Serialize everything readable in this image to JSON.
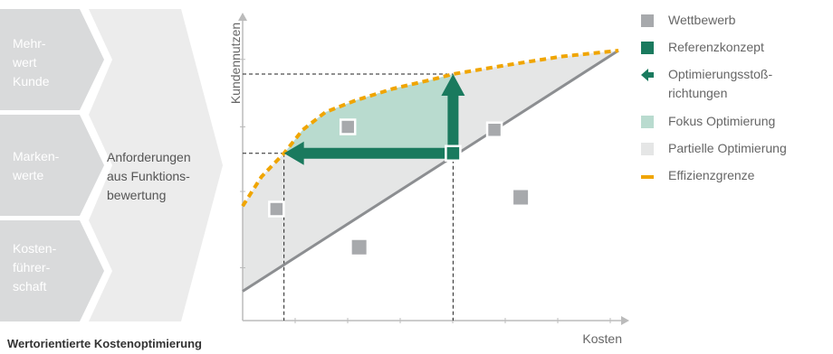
{
  "left_panel": {
    "chevrons": [
      {
        "label": "Mehr-\nwert\nKunde"
      },
      {
        "label": "Marken-\nwerte"
      },
      {
        "label": "Kosten-\nführer-\nschaft"
      }
    ],
    "requirements_text": "Anforderungen\naus Funktions-\nbewertung"
  },
  "chart_data": {
    "type": "scatter",
    "xlabel": "Kosten",
    "ylabel": "Kundennutzen",
    "xlim": [
      0,
      100
    ],
    "ylim": [
      0,
      100
    ],
    "wettbewerb_points": [
      {
        "x": 9,
        "y": 38
      },
      {
        "x": 28,
        "y": 66
      },
      {
        "x": 31,
        "y": 25
      },
      {
        "x": 67,
        "y": 65
      },
      {
        "x": 74,
        "y": 42
      }
    ],
    "referenzkonzept": {
      "x": 56,
      "y": 57
    },
    "optimized_cost_point": {
      "x": 11,
      "y": 57
    },
    "optimized_benefit_point": {
      "x": 56,
      "y": 84
    },
    "efficiency_frontier": [
      {
        "x": 0,
        "y": 39
      },
      {
        "x": 5,
        "y": 49
      },
      {
        "x": 11,
        "y": 57
      },
      {
        "x": 16,
        "y": 65
      },
      {
        "x": 22,
        "y": 71
      },
      {
        "x": 30,
        "y": 75
      },
      {
        "x": 40,
        "y": 79
      },
      {
        "x": 50,
        "y": 82
      },
      {
        "x": 56,
        "y": 84
      },
      {
        "x": 70,
        "y": 87
      },
      {
        "x": 85,
        "y": 90
      },
      {
        "x": 100,
        "y": 92
      }
    ],
    "baseline": [
      {
        "x": 0,
        "y": 10
      },
      {
        "x": 100,
        "y": 92
      }
    ],
    "legend": [
      {
        "label": "Wettbewerb",
        "color": "#a7a9ac",
        "kind": "square"
      },
      {
        "label": "Referenzkonzept",
        "color": "#1a7a5e",
        "kind": "square"
      },
      {
        "label": "Optimierungsstoß-\nrichtungen",
        "color": "#1a7a5e",
        "kind": "arrow"
      },
      {
        "label": "Fokus Optimierung",
        "color": "#b9dbcf",
        "kind": "square"
      },
      {
        "label": "Partielle Optimierung",
        "color": "#e5e6e6",
        "kind": "square"
      },
      {
        "label": "Effizienzgrenze",
        "color": "#f0a500",
        "kind": "dashed"
      }
    ]
  },
  "caption": "Wertorientierte Kostenoptimierung"
}
